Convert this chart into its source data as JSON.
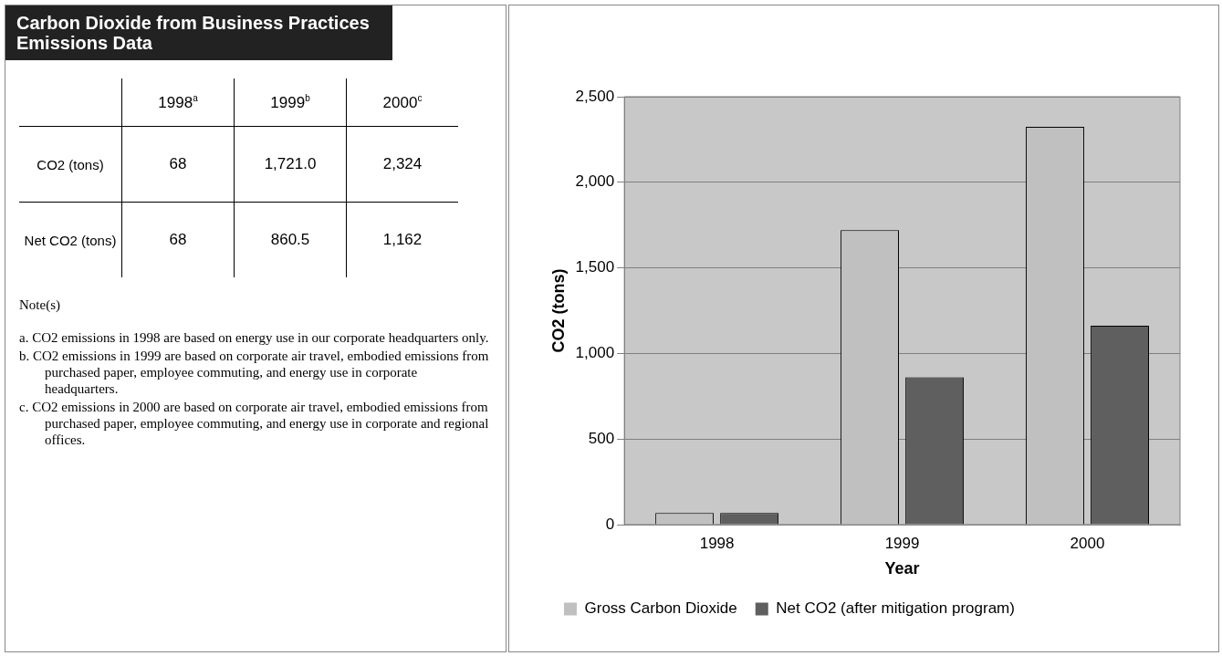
{
  "chart_data": [
    {
      "type": "other",
      "title": "Carbon Dioxide from Business Practices Emissions Data",
      "categories": [
        "1998$^{a}$",
        "1999$^{b}$",
        "2000$^{c}$"
      ],
      "y_categories": [
        "CO2 (tons)",
        "Net CO2 (tons)"
      ],
      "cell_labels": [
        [
          "68",
          "1,721.0",
          "2,324"
        ],
        [
          "68",
          "860.5",
          "1,162"
        ]
      ],
      "annotations": [
        "Note(s)",
        "a. CO2 emissions in 1998 are based on energy use in our corporate headquarters only.",
        "b. CO2 emissions in 1999 are based on corporate air travel, embodied emissions from purchased paper, employee commuting, and energy use in corporate headquarters.",
        "c. CO2 emissions in 2000 are based on corporate air travel, embodied emissions from purchased paper, employee commuting, and energy use in corporate and regional offices."
      ]
    },
    {
      "type": "bar",
      "xlabel": "Year",
      "ylabel": "CO2 (tons)",
      "categories": [
        "1998",
        "1999",
        "2000"
      ],
      "series": [
        {
          "name": "Gross Carbon Dioxide",
          "color": "#c0c0c0",
          "values": [
            68,
            1721,
            2324
          ]
        },
        {
          "name": "Net CO2 (after mitigation program)",
          "color": "#5f5f5f",
          "values": [
            68,
            860.5,
            1162
          ]
        }
      ],
      "ylim": [
        0,
        2500
      ],
      "yticks": [
        0,
        {
          "value": 500,
          "label": "500"
        },
        {
          "value": 1000,
          "label": "1,000"
        },
        {
          "value": 1500,
          "label": "1,500"
        },
        {
          "value": 2000,
          "label": "2,000"
        },
        {
          "value": 2500,
          "label": "2,500"
        }
      ],
      "grid": "y",
      "legend": "bottom"
    }
  ]
}
